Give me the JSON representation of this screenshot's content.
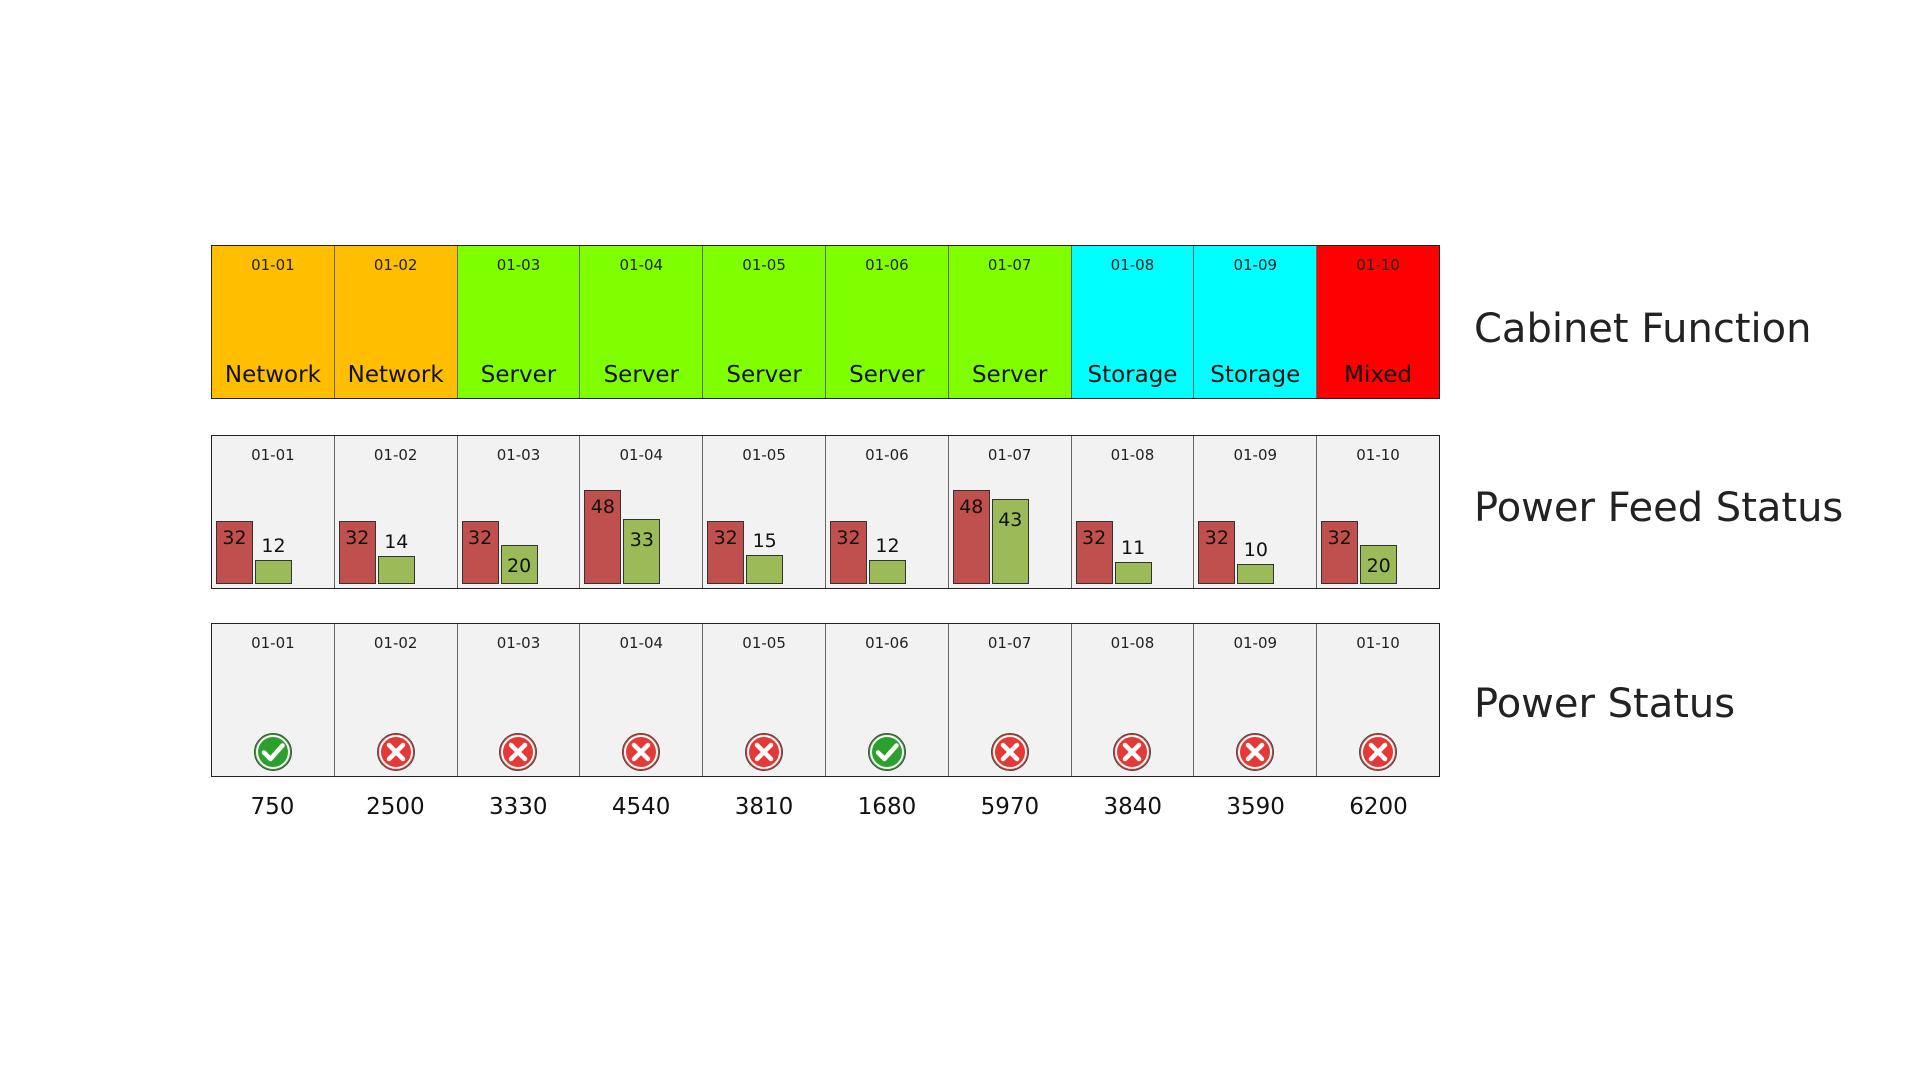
{
  "colors": {
    "network": "#ffbf00",
    "server": "#80ff00",
    "storage": "#00ffff",
    "mixed": "#ff0000",
    "feed_a": "#c0504d",
    "feed_b": "#9bbb59",
    "ok": "#2ca02c",
    "fail": "#e53935"
  },
  "labels": {
    "cabinet_function": "Cabinet Function",
    "power_feed_status": "Power Feed Status",
    "power_status": "Power Status"
  },
  "feed_scale_max": 60,
  "cabinets": [
    {
      "id": "01-01",
      "function": "Network",
      "function_key": "network",
      "feed_a": 32,
      "feed_b": 12,
      "power_ok": true,
      "power_icon": "check-circle-icon",
      "power": "750"
    },
    {
      "id": "01-02",
      "function": "Network",
      "function_key": "network",
      "feed_a": 32,
      "feed_b": 14,
      "power_ok": false,
      "power_icon": "x-circle-icon",
      "power": "2500"
    },
    {
      "id": "01-03",
      "function": "Server",
      "function_key": "server",
      "feed_a": 32,
      "feed_b": 20,
      "power_ok": false,
      "power_icon": "x-circle-icon",
      "power": "3330"
    },
    {
      "id": "01-04",
      "function": "Server",
      "function_key": "server",
      "feed_a": 48,
      "feed_b": 33,
      "power_ok": false,
      "power_icon": "x-circle-icon",
      "power": "4540"
    },
    {
      "id": "01-05",
      "function": "Server",
      "function_key": "server",
      "feed_a": 32,
      "feed_b": 15,
      "power_ok": false,
      "power_icon": "x-circle-icon",
      "power": "3810"
    },
    {
      "id": "01-06",
      "function": "Server",
      "function_key": "server",
      "feed_a": 32,
      "feed_b": 12,
      "power_ok": true,
      "power_icon": "check-circle-icon",
      "power": "1680"
    },
    {
      "id": "01-07",
      "function": "Server",
      "function_key": "server",
      "feed_a": 48,
      "feed_b": 43,
      "power_ok": false,
      "power_icon": "x-circle-icon",
      "power": "5970"
    },
    {
      "id": "01-08",
      "function": "Storage",
      "function_key": "storage",
      "feed_a": 32,
      "feed_b": 11,
      "power_ok": false,
      "power_icon": "x-circle-icon",
      "power": "3840"
    },
    {
      "id": "01-09",
      "function": "Storage",
      "function_key": "storage",
      "feed_a": 32,
      "feed_b": 10,
      "power_ok": false,
      "power_icon": "x-circle-icon",
      "power": "3590"
    },
    {
      "id": "01-10",
      "function": "Mixed",
      "function_key": "mixed",
      "feed_a": 32,
      "feed_b": 20,
      "power_ok": false,
      "power_icon": "x-circle-icon",
      "power": "6200"
    }
  ]
}
